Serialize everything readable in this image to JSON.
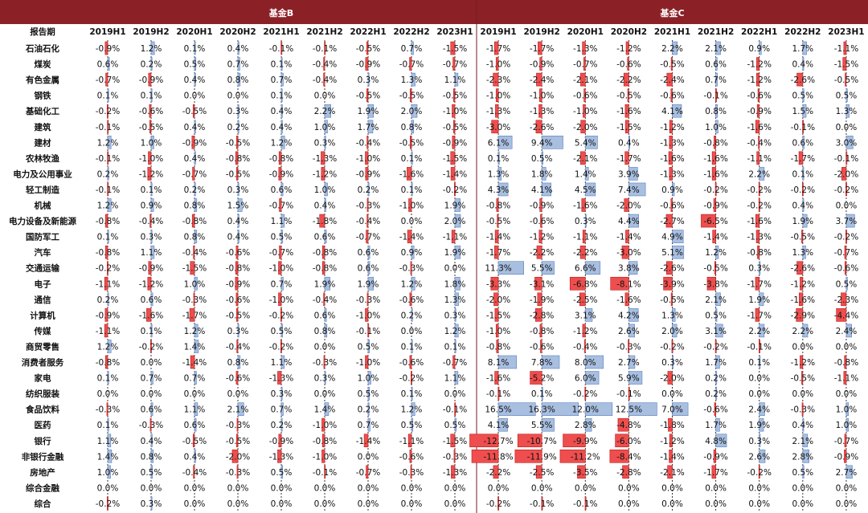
{
  "chart_data": {
    "type": "table",
    "title": "",
    "row_header": "报告期",
    "colors": {
      "header_bg": "#8b2127",
      "header_text": "#ffffff",
      "positive": "#a8bfe0",
      "positive_border": "#5a7fbf",
      "negative": "#ee4e4e",
      "negative_border": "#c01818",
      "axis": "#222222"
    },
    "periods": [
      "2019H1",
      "2019H2",
      "2020H1",
      "2020H2",
      "2021H1",
      "2021H2",
      "2022H1",
      "2022H2",
      "2023H1"
    ],
    "industries": [
      "石油石化",
      "煤炭",
      "有色金属",
      "钢铁",
      "基础化工",
      "建筑",
      "建材",
      "农林牧渔",
      "电力及公用事业",
      "轻工制造",
      "机械",
      "电力设备及新能源",
      "国防军工",
      "汽车",
      "交通运输",
      "电子",
      "通信",
      "计算机",
      "传媒",
      "商贸零售",
      "消费者服务",
      "家电",
      "纺织服装",
      "食品饮料",
      "医药",
      "银行",
      "非银行金融",
      "房地产",
      "综合金融",
      "综合"
    ],
    "groups": [
      {
        "name": "基金B",
        "scale": 3.5,
        "values": [
          [
            -0.9,
            1.2,
            0.1,
            0.4,
            -0.1,
            -0.1,
            -0.5,
            0.7,
            -1.5
          ],
          [
            0.6,
            0.2,
            0.5,
            0.7,
            0.1,
            -0.4,
            -0.9,
            -0.7,
            -0.7
          ],
          [
            -0.7,
            -0.9,
            0.4,
            0.8,
            0.7,
            -0.4,
            0.3,
            1.3,
            1.1
          ],
          [
            0.1,
            0.1,
            0.0,
            0.0,
            0.1,
            0.0,
            -0.5,
            -0.5,
            -0.5
          ],
          [
            -0.2,
            -0.6,
            -0.5,
            0.3,
            0.4,
            2.2,
            1.9,
            2.0,
            -1.0
          ],
          [
            -0.1,
            -0.5,
            0.4,
            0.2,
            0.4,
            1.0,
            1.7,
            0.8,
            -0.5
          ],
          [
            1.2,
            1.0,
            -0.9,
            -0.5,
            1.2,
            0.3,
            -0.4,
            -0.5,
            -0.9
          ],
          [
            -0.1,
            -1.0,
            0.4,
            -0.8,
            -0.8,
            -1.3,
            -1.0,
            0.1,
            -1.5
          ],
          [
            0.2,
            -1.2,
            -0.7,
            -0.5,
            -0.9,
            -1.2,
            -0.9,
            -1.6,
            -1.4
          ],
          [
            -0.1,
            0.1,
            0.2,
            0.3,
            0.6,
            1.0,
            0.2,
            0.1,
            -0.2
          ],
          [
            1.2,
            0.9,
            0.8,
            1.5,
            -0.7,
            0.4,
            -0.3,
            -1.0,
            1.9
          ],
          [
            -0.8,
            -0.4,
            -0.8,
            0.4,
            1.1,
            -1.8,
            -0.4,
            0.0,
            2.0
          ],
          [
            0.1,
            0.3,
            0.8,
            0.4,
            0.5,
            0.6,
            -0.7,
            -1.4,
            -1.1
          ],
          [
            -0.8,
            1.1,
            -0.4,
            -0.6,
            -0.7,
            -0.8,
            0.6,
            0.9,
            1.9
          ],
          [
            -0.2,
            -0.9,
            -1.5,
            -0.8,
            -1.0,
            -0.8,
            0.6,
            -0.3,
            0.0
          ],
          [
            -1.1,
            -1.2,
            1.0,
            -0.9,
            0.7,
            1.9,
            1.9,
            1.2,
            1.8
          ],
          [
            0.2,
            0.6,
            -0.3,
            -0.6,
            -1.0,
            -0.4,
            -0.3,
            -0.6,
            1.3
          ],
          [
            -0.9,
            -1.6,
            -1.7,
            -0.5,
            -0.2,
            0.6,
            -1.0,
            0.2,
            0.3
          ],
          [
            -1.1,
            0.1,
            1.2,
            0.3,
            0.5,
            0.8,
            -0.1,
            0.0,
            1.2
          ],
          [
            1.2,
            -0.2,
            1.4,
            -0.4,
            -0.2,
            0.0,
            0.5,
            0.1,
            0.1
          ],
          [
            -0.8,
            0.0,
            -1.4,
            0.8,
            1.1,
            -0.3,
            -1.0,
            -0.6,
            -0.7
          ],
          [
            0.1,
            0.7,
            0.7,
            -0.6,
            -1.3,
            0.3,
            1.0,
            -0.2,
            1.1
          ],
          [
            0.0,
            0.0,
            0.0,
            0.0,
            0.3,
            0.0,
            0.5,
            0.1,
            0.0
          ],
          [
            -0.3,
            0.6,
            1.1,
            2.1,
            0.7,
            1.4,
            0.2,
            1.2,
            -0.1
          ],
          [
            0.1,
            -0.3,
            0.6,
            -0.3,
            0.2,
            -1.0,
            0.7,
            0.5,
            0.5
          ],
          [
            1.1,
            0.4,
            -0.5,
            -0.5,
            -0.9,
            -0.8,
            -1.4,
            -1.1,
            -1.5
          ],
          [
            1.4,
            0.8,
            0.4,
            -2.0,
            -1.3,
            -1.0,
            0.0,
            -0.6,
            -0.3
          ],
          [
            1.0,
            0.5,
            -0.4,
            -0.3,
            0.5,
            -0.1,
            -0.7,
            -0.3,
            -1.3
          ],
          [
            0.0,
            0.0,
            0.0,
            0.0,
            0.0,
            0.0,
            0.0,
            0.0,
            0.0
          ],
          [
            -0.2,
            0.3,
            0.0,
            0.0,
            0.0,
            0.0,
            0.0,
            0.0,
            0.0
          ]
        ]
      },
      {
        "name": "基金C",
        "scale": 2.8,
        "values": [
          [
            -1.7,
            -1.7,
            -1.3,
            -1.2,
            2.2,
            2.1,
            0.9,
            1.7,
            -1.1
          ],
          [
            -1.0,
            -0.9,
            -0.7,
            -0.6,
            -0.5,
            0.6,
            -1.2,
            0.4,
            -1.5
          ],
          [
            -2.3,
            -2.4,
            -2.1,
            -2.2,
            -2.4,
            0.7,
            -1.2,
            -2.6,
            -0.5
          ],
          [
            -1.0,
            -1.0,
            -0.6,
            -0.5,
            -0.6,
            -0.1,
            -0.6,
            0.5,
            0.5
          ],
          [
            -1.3,
            -1.3,
            -1.0,
            -1.6,
            4.1,
            0.8,
            -0.9,
            1.5,
            1.3
          ],
          [
            -3.0,
            -2.6,
            -2.0,
            -1.5,
            -1.2,
            1.0,
            -1.6,
            -0.1,
            0.0
          ],
          [
            6.1,
            9.4,
            5.4,
            0.4,
            -1.3,
            -0.8,
            -0.4,
            0.6,
            3.0
          ],
          [
            0.1,
            0.5,
            -2.1,
            -1.7,
            -1.6,
            -1.6,
            -1.1,
            -1.7,
            -0.1
          ],
          [
            1.3,
            1.8,
            1.4,
            3.9,
            -1.3,
            -1.6,
            2.2,
            0.1,
            -2.0
          ],
          [
            4.3,
            4.1,
            4.5,
            7.4,
            0.9,
            -0.2,
            -0.2,
            -0.2,
            -0.2
          ],
          [
            -0.8,
            -0.9,
            -1.6,
            -2.0,
            -0.6,
            -0.9,
            -0.2,
            0.4,
            0.0
          ],
          [
            -0.5,
            -0.6,
            0.3,
            4.4,
            -2.7,
            -6.5,
            -1.6,
            1.9,
            3.7
          ],
          [
            -1.4,
            -1.2,
            -1.1,
            -1.4,
            4.9,
            -1.4,
            -1.3,
            -0.5,
            -0.2
          ],
          [
            -1.7,
            -2.2,
            -2.2,
            -3.0,
            5.1,
            1.2,
            -0.8,
            1.3,
            -0.7
          ],
          [
            11.3,
            5.5,
            6.6,
            3.8,
            -2.6,
            -0.5,
            0.3,
            -2.6,
            -0.6
          ],
          [
            -3.3,
            -3.1,
            -6.8,
            -8.1,
            -3.9,
            -3.8,
            -1.7,
            -1.2,
            0.5
          ],
          [
            -2.0,
            -1.9,
            -2.5,
            -1.6,
            -0.5,
            2.1,
            1.9,
            -1.6,
            -2.3
          ],
          [
            -1.5,
            -2.8,
            3.1,
            4.2,
            1.3,
            0.5,
            -1.7,
            -2.9,
            -4.4
          ],
          [
            -1.0,
            -0.8,
            -1.2,
            2.6,
            2.0,
            3.1,
            2.2,
            2.2,
            2.4
          ],
          [
            -0.8,
            -0.6,
            -0.4,
            -0.3,
            -0.2,
            -0.2,
            -0.1,
            0.0,
            0.0
          ],
          [
            8.1,
            7.8,
            8.0,
            2.7,
            0.3,
            1.7,
            0.1,
            -1.2,
            -0.8
          ],
          [
            -1.6,
            -5.2,
            6.0,
            5.9,
            -2.0,
            0.2,
            0.0,
            -0.5,
            -1.1
          ],
          [
            -0.1,
            0.1,
            -0.2,
            -0.1,
            0.0,
            0.2,
            0.0,
            0.0,
            0.0
          ],
          [
            16.5,
            16.3,
            12.0,
            12.5,
            7.0,
            -0.6,
            2.4,
            -0.3,
            1.0
          ],
          [
            4.1,
            5.5,
            2.8,
            -4.8,
            -1.8,
            1.7,
            1.9,
            0.4,
            1.0
          ],
          [
            -12.7,
            -10.7,
            -9.9,
            -6.0,
            -1.2,
            4.8,
            0.3,
            2.1,
            -0.7
          ],
          [
            -11.8,
            -11.9,
            -11.2,
            -8.4,
            -1.4,
            -0.9,
            2.6,
            2.8,
            -0.9
          ],
          [
            -2.2,
            -2.5,
            -3.5,
            -2.8,
            -2.1,
            -1.7,
            -0.2,
            0.5,
            2.7
          ],
          [
            0.0,
            0.0,
            0.0,
            0.0,
            0.0,
            0.0,
            0.0,
            0.0,
            0.0
          ],
          [
            -0.2,
            -0.1,
            -0.1,
            0.0,
            0.0,
            0.0,
            0.0,
            0.0,
            0.0
          ]
        ]
      }
    ]
  }
}
